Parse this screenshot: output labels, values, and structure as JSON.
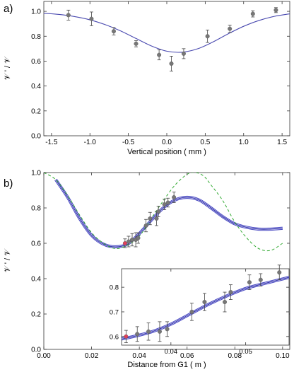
{
  "chart_data": [
    {
      "panel": "a)",
      "type": "scatter",
      "xlabel": "Vertical position ( mm )",
      "ylabel": "𝒱 ' / 𝒱",
      "xlim": [
        -1.6,
        1.6
      ],
      "ylim": [
        0.0,
        1.08
      ],
      "xticks": [
        -1.5,
        -1.0,
        -0.5,
        0.0,
        0.5,
        1.0,
        1.5
      ],
      "xtick_labels": [
        "-1.5",
        "-1.0",
        "-0.5",
        "0.0",
        "0.5",
        "1.0",
        "1.5"
      ],
      "yticks": [
        0.0,
        0.2,
        0.4,
        0.6,
        0.8,
        1.0
      ],
      "ytick_labels": [
        "0.0",
        "0.2",
        "0.4",
        "0.6",
        "0.8",
        "1.0"
      ],
      "grid": false,
      "series": [
        {
          "kind": "points_with_errorbars",
          "color": "#777777",
          "x": [
            -1.28,
            -0.98,
            -0.69,
            -0.4,
            -0.1,
            0.06,
            0.22,
            0.53,
            0.82,
            1.12,
            1.42
          ],
          "y": [
            0.97,
            0.94,
            0.84,
            0.74,
            0.65,
            0.58,
            0.66,
            0.8,
            0.86,
            0.98,
            1.01
          ],
          "yerr": [
            0.04,
            0.055,
            0.03,
            0.025,
            0.04,
            0.06,
            0.04,
            0.05,
            0.03,
            0.025,
            0.02
          ]
        },
        {
          "kind": "fit_curve",
          "color": "#4a4ab0",
          "x": [
            -1.6,
            -1.4,
            -1.2,
            -1.0,
            -0.8,
            -0.6,
            -0.4,
            -0.2,
            0.0,
            0.2,
            0.4,
            0.6,
            0.8,
            1.0,
            1.2,
            1.4,
            1.6
          ],
          "y": [
            0.985,
            0.975,
            0.958,
            0.932,
            0.893,
            0.843,
            0.782,
            0.722,
            0.68,
            0.672,
            0.699,
            0.754,
            0.82,
            0.88,
            0.927,
            0.96,
            0.98
          ]
        }
      ]
    },
    {
      "panel": "b)",
      "type": "scatter",
      "xlabel": "Distance from G1 ( m )",
      "ylabel": "𝒱 ' / 𝒱",
      "xlim": [
        0.0,
        0.103
      ],
      "ylim": [
        0.0,
        1.0
      ],
      "xticks": [
        0.0,
        0.02,
        0.04,
        0.06,
        0.08,
        0.1
      ],
      "xtick_labels": [
        "0.00",
        "0.02",
        "0.04",
        "0.06",
        "0.08",
        "0.10"
      ],
      "yticks": [
        0.0,
        0.2,
        0.4,
        0.6,
        0.8,
        1.0
      ],
      "ytick_labels": [
        "0.0",
        "0.2",
        "0.4",
        "0.6",
        "0.8",
        "1.0"
      ],
      "grid": false,
      "series": [
        {
          "kind": "points_with_errorbars",
          "color": "#777777",
          "x": [
            0.0355,
            0.037,
            0.0385,
            0.0395,
            0.0428,
            0.0445,
            0.0472,
            0.048,
            0.0505,
            0.052,
            0.0545
          ],
          "y": [
            0.61,
            0.62,
            0.62,
            0.63,
            0.7,
            0.74,
            0.74,
            0.78,
            0.82,
            0.83,
            0.86
          ],
          "yerr": [
            0.03,
            0.035,
            0.04,
            0.03,
            0.035,
            0.035,
            0.04,
            0.03,
            0.03,
            0.025,
            0.03
          ]
        },
        {
          "kind": "point_with_errorbar",
          "color": "#e0405a",
          "x": [
            0.034
          ],
          "y": [
            0.6
          ],
          "yerr": [
            0.025
          ]
        },
        {
          "kind": "fit_curve",
          "color": "#2a2ab8",
          "x": [
            0.005,
            0.01,
            0.015,
            0.02,
            0.025,
            0.03,
            0.035,
            0.04,
            0.045,
            0.05,
            0.055,
            0.06,
            0.065,
            0.07,
            0.075,
            0.08,
            0.085,
            0.09,
            0.095,
            0.1
          ],
          "y": [
            0.96,
            0.86,
            0.74,
            0.645,
            0.595,
            0.58,
            0.595,
            0.655,
            0.73,
            0.8,
            0.845,
            0.86,
            0.845,
            0.8,
            0.75,
            0.71,
            0.69,
            0.68,
            0.68,
            0.685
          ]
        },
        {
          "kind": "dashed_curve",
          "color": "#33aa33",
          "x": [
            0.0,
            0.005,
            0.01,
            0.015,
            0.02,
            0.025,
            0.03,
            0.035,
            0.04,
            0.045,
            0.05,
            0.055,
            0.06,
            0.0635,
            0.067,
            0.07,
            0.075,
            0.08,
            0.085,
            0.09,
            0.095,
            0.1
          ],
          "y": [
            1.0,
            0.96,
            0.87,
            0.76,
            0.66,
            0.6,
            0.57,
            0.59,
            0.64,
            0.74,
            0.84,
            0.93,
            0.99,
            1.0,
            0.98,
            0.93,
            0.84,
            0.72,
            0.63,
            0.57,
            0.56,
            0.6
          ]
        }
      ]
    },
    {
      "panel": "b) inset",
      "type": "scatter",
      "xlim": [
        0.0334,
        0.0558
      ],
      "ylim": [
        0.565,
        0.875
      ],
      "xticks": [
        0.04,
        0.05
      ],
      "xtick_labels": [
        "0.04",
        "0.05"
      ],
      "yticks": [
        0.6,
        0.7,
        0.8
      ],
      "ytick_labels": [
        "0.6",
        "0.7",
        "0.8"
      ],
      "grid": false,
      "series": [
        {
          "kind": "points_with_errorbars",
          "color": "#777777",
          "x": [
            0.0355,
            0.037,
            0.0385,
            0.0395,
            0.0428,
            0.0445,
            0.0472,
            0.048,
            0.0505,
            0.052,
            0.0545
          ],
          "y": [
            0.61,
            0.62,
            0.62,
            0.63,
            0.7,
            0.74,
            0.74,
            0.78,
            0.82,
            0.83,
            0.86
          ],
          "yerr": [
            0.03,
            0.035,
            0.04,
            0.03,
            0.035,
            0.035,
            0.04,
            0.03,
            0.03,
            0.025,
            0.03
          ]
        },
        {
          "kind": "point_with_errorbar",
          "color": "#e0405a",
          "x": [
            0.034
          ],
          "y": [
            0.6
          ],
          "yerr": [
            0.025
          ]
        },
        {
          "kind": "fit_curve",
          "color": "#2a2ab8",
          "x": [
            0.0334,
            0.035,
            0.0375,
            0.04,
            0.0425,
            0.045,
            0.0475,
            0.05,
            0.0525,
            0.0558
          ],
          "y": [
            0.59,
            0.6,
            0.62,
            0.65,
            0.69,
            0.73,
            0.765,
            0.795,
            0.815,
            0.84
          ]
        }
      ]
    }
  ]
}
